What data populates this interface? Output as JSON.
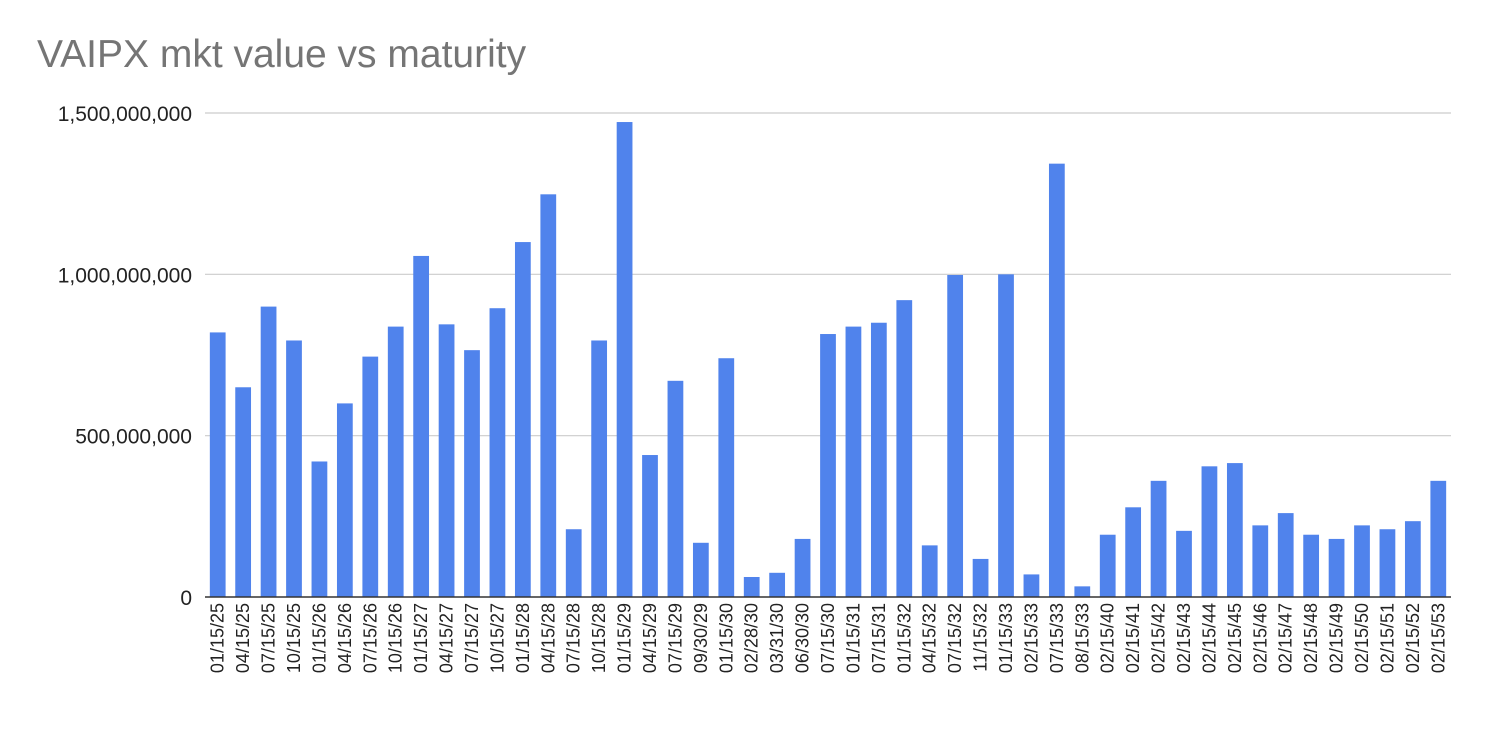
{
  "chart_data": {
    "type": "bar",
    "title": "VAIPX mkt value vs maturity",
    "xlabel": "",
    "ylabel": "",
    "ylim": [
      0,
      1500000000
    ],
    "yticks": [
      0,
      500000000,
      1000000000,
      1500000000
    ],
    "ytick_labels": [
      "0",
      "500,000,000",
      "1,000,000,000",
      "1,500,000,000"
    ],
    "grid": true,
    "legend": "none",
    "bar_color": "#5083ec",
    "categories": [
      "01/15/25",
      "04/15/25",
      "07/15/25",
      "10/15/25",
      "01/15/26",
      "04/15/26",
      "07/15/26",
      "10/15/26",
      "01/15/27",
      "04/15/27",
      "07/15/27",
      "10/15/27",
      "01/15/28",
      "04/15/28",
      "07/15/28",
      "10/15/28",
      "01/15/29",
      "04/15/29",
      "07/15/29",
      "09/30/29",
      "01/15/30",
      "02/28/30",
      "03/31/30",
      "06/30/30",
      "07/15/30",
      "01/15/31",
      "07/15/31",
      "01/15/32",
      "04/15/32",
      "07/15/32",
      "11/15/32",
      "01/15/33",
      "02/15/33",
      "07/15/33",
      "08/15/33",
      "02/15/40",
      "02/15/41",
      "02/15/42",
      "02/15/43",
      "02/15/44",
      "02/15/45",
      "02/15/46",
      "02/15/47",
      "02/15/48",
      "02/15/49",
      "02/15/50",
      "02/15/51",
      "02/15/52",
      "02/15/53"
    ],
    "values": [
      820000000,
      650000000,
      900000000,
      795000000,
      420000000,
      600000000,
      745000000,
      838000000,
      1057000000,
      845000000,
      765000000,
      895000000,
      1100000000,
      1248000000,
      210000000,
      795000000,
      1472000000,
      440000000,
      670000000,
      168000000,
      740000000,
      62000000,
      75000000,
      180000000,
      815000000,
      838000000,
      850000000,
      920000000,
      160000000,
      998000000,
      118000000,
      1000000000,
      70000000,
      1343000000,
      33000000,
      193000000,
      278000000,
      360000000,
      205000000,
      405000000,
      415000000,
      222000000,
      260000000,
      193000000,
      180000000,
      222000000,
      210000000,
      235000000,
      360000000
    ]
  }
}
